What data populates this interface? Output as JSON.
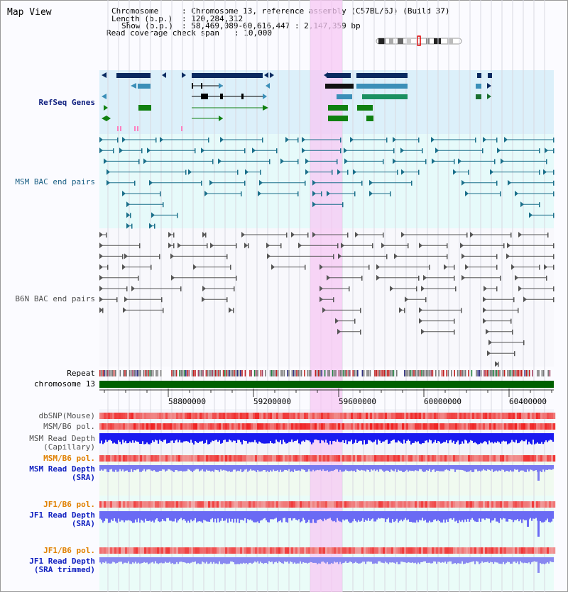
{
  "title": "Map View",
  "header": {
    "chromosome_label": "Chromosome",
    "chromosome_value": ": Chromosome 13, reference assembly (C57BL/6J) (Build 37)",
    "length_label": "Length (b.p.)",
    "length_value": ": 120,284,312",
    "show_label": "Show (b.p.)",
    "show_value": ": 58,469,089-60,616,447 : 2,147,359 bp",
    "coverage_label": "Read coverage check span",
    "coverage_value": ": 10,000"
  },
  "tracks": {
    "refseq": "RefSeq Genes",
    "msm_bac": "MSM BAC end pairs",
    "b6n_bac": "B6N BAC end pairs",
    "repeat": "Repeat",
    "chromosome": "chromosome 13",
    "dbsnp": "dbSNP(Mouse)",
    "msm_b6_pol_1": "MSM/B6 pol.",
    "msm_depth_cap": "MSM Read Depth\n(Capillary)",
    "msm_b6_pol_2": "MSM/B6 pol.",
    "msm_depth_sra": "MSM Read Depth\n(SRA)",
    "jf1_b6_pol_1": "JF1/B6 pol.",
    "jf1_depth_sra": "JF1 Read Depth\n(SRA)",
    "jf1_b6_pol_2": "JF1/B6 pol.",
    "jf1_depth_trim": "JF1 Read Depth\n(SRA trimmed)"
  },
  "axis": {
    "ticks": [
      "58800000",
      "59200000",
      "59600000",
      "60000000",
      "60400000"
    ]
  },
  "colors": {
    "refseq_bg": "#dcf0fa",
    "bac_bg": "#e6fafa",
    "highlight": "#f7d0f5",
    "chrom_bar": "#006000",
    "depth_blue": "#2020ee",
    "depth_light": "#7a7af0"
  }
}
